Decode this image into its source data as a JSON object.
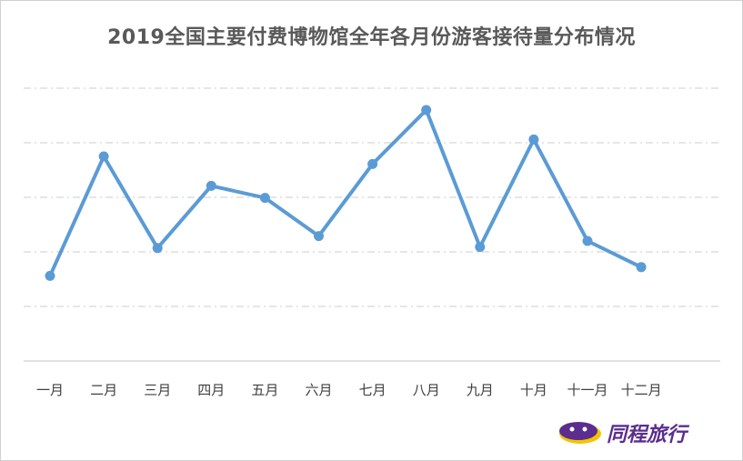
{
  "chart_data": {
    "type": "line",
    "title": "2019全国主要付费博物馆全年各月份游客接待量分布情况",
    "categories": [
      "一月",
      "二月",
      "三月",
      "四月",
      "五月",
      "六月",
      "七月",
      "八月",
      "九月",
      "十月",
      "十一月",
      "十二月"
    ],
    "values": [
      1.56,
      3.75,
      2.07,
      3.21,
      2.99,
      2.29,
      3.61,
      4.6,
      2.09,
      4.06,
      2.2,
      1.72
    ],
    "ylim": [
      0,
      5
    ],
    "grid": true,
    "legend": "none",
    "color": "#5b9bd5"
  },
  "brand": {
    "logo_text": "同程旅行",
    "logo_color": "#5b2d8e",
    "logo_accent": "#f5c400"
  }
}
